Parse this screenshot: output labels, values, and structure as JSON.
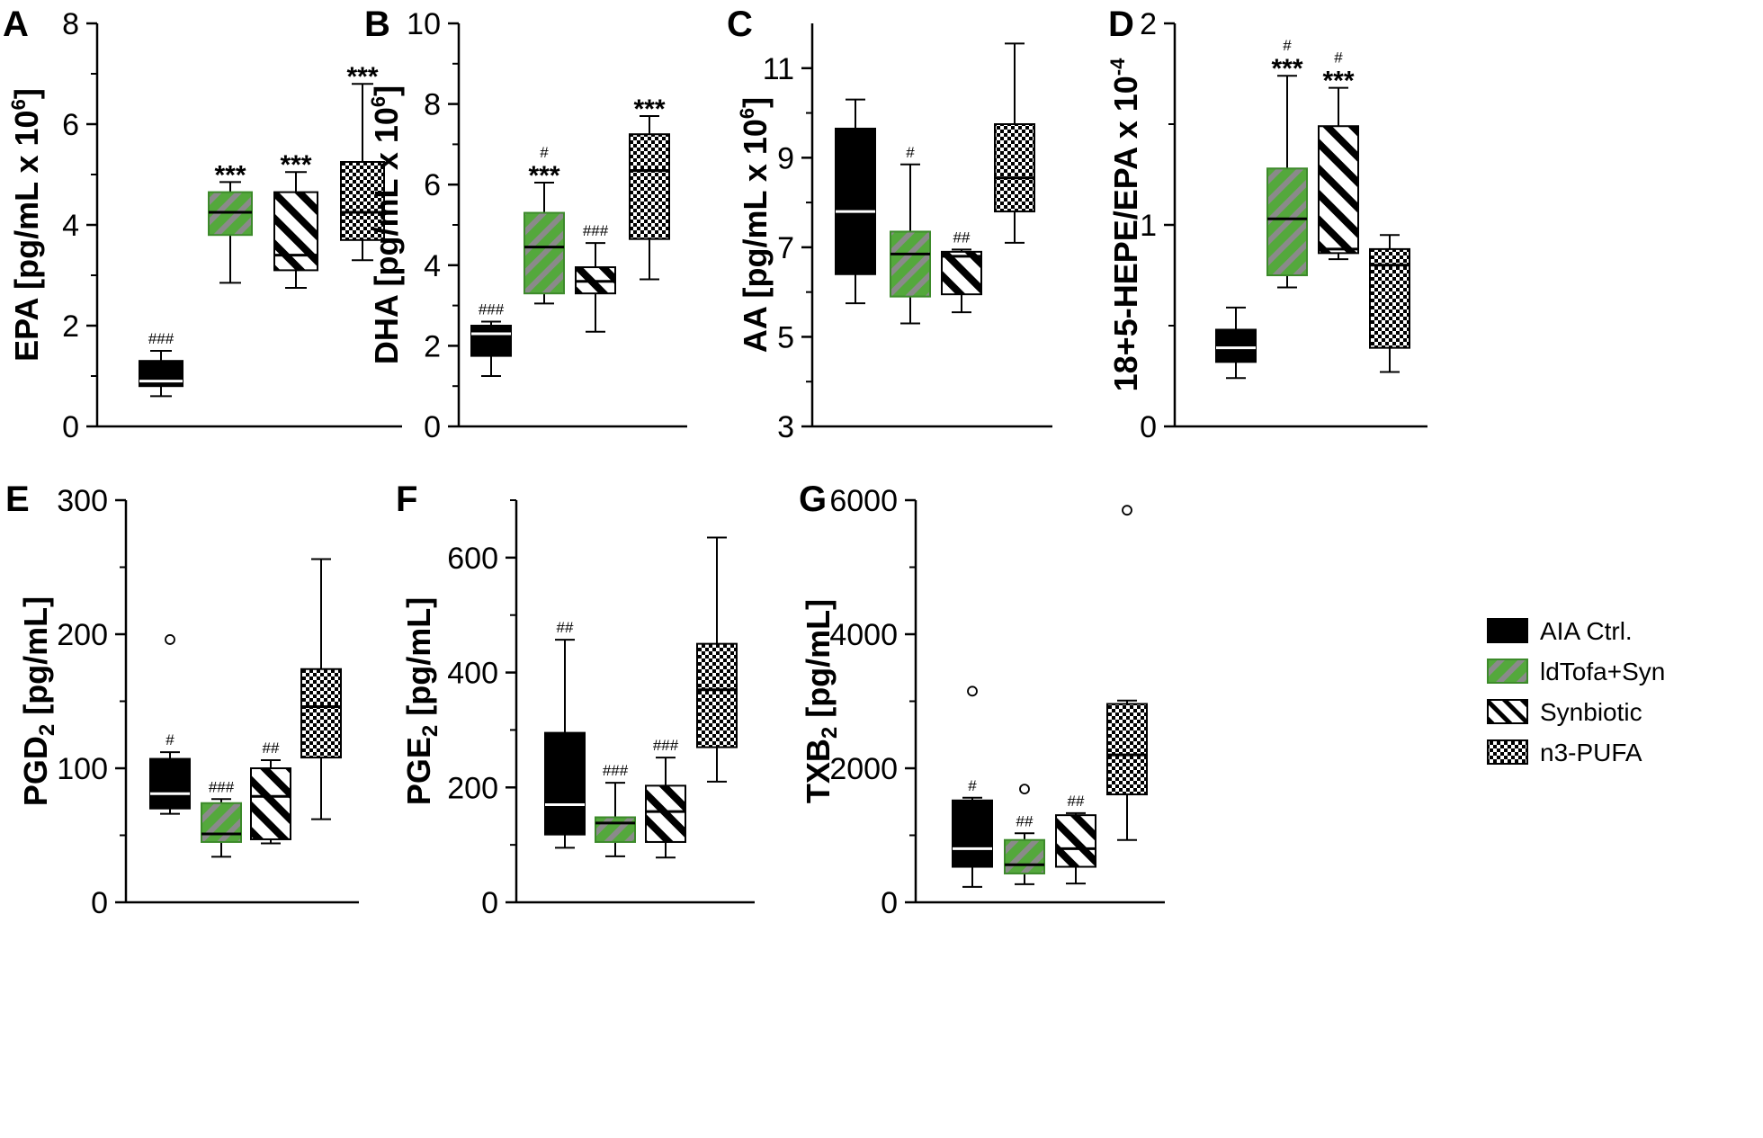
{
  "colors": {
    "ctrl": "#000000",
    "green": "#54a83c",
    "green_stripe": "#808080",
    "white": "#ffffff",
    "median_dark": "#000000",
    "median_light": "#ffffff"
  },
  "legend": [
    {
      "label": "AIA Ctrl.",
      "style": "black"
    },
    {
      "label": "ldTofa+Syn",
      "style": "green"
    },
    {
      "label": "Synbiotic",
      "style": "stripe"
    },
    {
      "label": "n3-PUFA",
      "style": "check"
    }
  ],
  "chart_data": [
    {
      "type": "box",
      "panel": "A",
      "ylabel": "EPA [pg/mL x 10",
      "ylabel_sup": "6",
      "ylabel_close": "]",
      "ylim": [
        0,
        8
      ],
      "yticks": [
        0,
        2,
        4,
        6,
        8
      ],
      "minor": [
        1,
        3,
        5,
        7
      ],
      "groups": [
        {
          "whisker_low": 0.6,
          "q1": 0.8,
          "median": 0.9,
          "q3": 1.3,
          "whisker_high": 1.5,
          "annot": [
            "###"
          ]
        },
        {
          "whisker_low": 2.85,
          "q1": 3.8,
          "median": 4.25,
          "q3": 4.65,
          "whisker_high": 4.85,
          "annot": [
            "***"
          ]
        },
        {
          "whisker_low": 2.75,
          "q1": 3.1,
          "median": 3.4,
          "q3": 4.65,
          "whisker_high": 5.05,
          "annot": [
            "***"
          ]
        },
        {
          "whisker_low": 3.3,
          "q1": 3.7,
          "median": 4.25,
          "q3": 5.25,
          "whisker_high": 6.8,
          "annot": [
            "***"
          ]
        }
      ]
    },
    {
      "type": "box",
      "panel": "B",
      "ylabel": "DHA [pg/mL x 10",
      "ylabel_sup": "6",
      "ylabel_close": "]",
      "ylim": [
        0,
        10
      ],
      "yticks": [
        0,
        2,
        4,
        6,
        8,
        10
      ],
      "minor": [
        1,
        3,
        5,
        7,
        9
      ],
      "groups": [
        {
          "whisker_low": 1.25,
          "q1": 1.75,
          "median": 2.3,
          "q3": 2.5,
          "whisker_high": 2.6,
          "annot": [
            "###"
          ]
        },
        {
          "whisker_low": 3.05,
          "q1": 3.3,
          "median": 4.45,
          "q3": 5.3,
          "whisker_high": 6.05,
          "annot": [
            "#",
            "***"
          ]
        },
        {
          "whisker_low": 2.35,
          "q1": 3.3,
          "median": 3.6,
          "q3": 3.95,
          "whisker_high": 4.55,
          "annot": [
            "###"
          ]
        },
        {
          "whisker_low": 3.65,
          "q1": 4.65,
          "median": 6.35,
          "q3": 7.25,
          "whisker_high": 7.7,
          "annot": [
            "***"
          ]
        }
      ]
    },
    {
      "type": "box",
      "panel": "C",
      "ylabel": "AA [pg/mL x 10",
      "ylabel_sup": "6",
      "ylabel_close": "]",
      "ylim": [
        3,
        12
      ],
      "yticks": [
        3,
        5,
        7,
        9,
        11
      ],
      "minor": [
        4,
        6,
        8,
        10
      ],
      "groups": [
        {
          "whisker_low": 5.75,
          "q1": 6.4,
          "median": 7.8,
          "q3": 9.65,
          "whisker_high": 10.3,
          "annot": []
        },
        {
          "whisker_low": 5.3,
          "q1": 5.9,
          "median": 6.85,
          "q3": 7.35,
          "whisker_high": 8.85,
          "annot": [
            "#"
          ]
        },
        {
          "whisker_low": 5.55,
          "q1": 5.95,
          "median": 6.8,
          "q3": 6.9,
          "whisker_high": 6.95,
          "annot": [
            "##"
          ]
        },
        {
          "whisker_low": 7.1,
          "q1": 7.8,
          "median": 8.55,
          "q3": 9.75,
          "whisker_high": 11.55,
          "annot": []
        }
      ]
    },
    {
      "type": "box",
      "panel": "D",
      "ylabel": "18+5-HEPE/EPA x 10",
      "ylabel_sup": "-4",
      "ylabel_close": "",
      "ylim": [
        0,
        2
      ],
      "yticks": [
        0,
        1,
        2
      ],
      "yticklabels": [
        "0",
        "1",
        "2"
      ],
      "minor": [
        0.5,
        1.5
      ],
      "groups": [
        {
          "whisker_low": 0.24,
          "q1": 0.32,
          "median": 0.39,
          "q3": 0.48,
          "whisker_high": 0.59,
          "annot": []
        },
        {
          "whisker_low": 0.69,
          "q1": 0.75,
          "median": 1.03,
          "q3": 1.28,
          "whisker_high": 1.74,
          "annot": [
            "#",
            "***"
          ]
        },
        {
          "whisker_low": 0.83,
          "q1": 0.86,
          "median": 0.88,
          "q3": 1.49,
          "whisker_high": 1.68,
          "annot": [
            "#",
            "***"
          ]
        },
        {
          "whisker_low": 0.27,
          "q1": 0.39,
          "median": 0.8,
          "q3": 0.88,
          "whisker_high": 0.95,
          "annot": []
        }
      ]
    },
    {
      "type": "box",
      "panel": "E",
      "ylabel": "PGD",
      "ylabel_sub": "2",
      "ylabel_close": " [pg/mL]",
      "ylim": [
        0,
        300
      ],
      "yticks": [
        0,
        100,
        200,
        300
      ],
      "minor": [
        50,
        150,
        250
      ],
      "groups": [
        {
          "whisker_low": 66,
          "q1": 70,
          "median": 81,
          "q3": 107,
          "whisker_high": 112,
          "outliers": [
            196
          ],
          "annot": [
            "#"
          ]
        },
        {
          "whisker_low": 34,
          "q1": 45,
          "median": 51,
          "q3": 74,
          "whisker_high": 77,
          "annot": [
            "###"
          ]
        },
        {
          "whisker_low": 44,
          "q1": 47,
          "median": 79,
          "q3": 100,
          "whisker_high": 106,
          "annot": [
            "##"
          ]
        },
        {
          "whisker_low": 62,
          "q1": 108,
          "median": 146,
          "q3": 174,
          "whisker_high": 256,
          "annot": []
        }
      ]
    },
    {
      "type": "box",
      "panel": "F",
      "ylabel": "PGE",
      "ylabel_sub": "2",
      "ylabel_close": " [pg/mL]",
      "ylim": [
        0,
        700
      ],
      "yticks": [
        0,
        200,
        400,
        600
      ],
      "minor": [
        100,
        300,
        500,
        700
      ],
      "groups": [
        {
          "whisker_low": 95,
          "q1": 118,
          "median": 170,
          "q3": 295,
          "whisker_high": 457,
          "annot": [
            "##"
          ]
        },
        {
          "whisker_low": 80,
          "q1": 105,
          "median": 138,
          "q3": 148,
          "whisker_high": 208,
          "annot": [
            "###"
          ]
        },
        {
          "whisker_low": 78,
          "q1": 105,
          "median": 158,
          "q3": 203,
          "whisker_high": 252,
          "annot": [
            "###"
          ]
        },
        {
          "whisker_low": 210,
          "q1": 270,
          "median": 370,
          "q3": 450,
          "whisker_high": 635,
          "annot": []
        }
      ]
    },
    {
      "type": "box",
      "panel": "G",
      "ylabel": "TXB",
      "ylabel_sub": "2",
      "ylabel_close": " [pg/mL]",
      "ylim": [
        0,
        6000
      ],
      "yticks": [
        0,
        2000,
        4000,
        6000
      ],
      "minor": [
        1000,
        3000,
        5000
      ],
      "groups": [
        {
          "whisker_low": 230,
          "q1": 530,
          "median": 800,
          "q3": 1520,
          "whisker_high": 1560,
          "outliers": [
            3150
          ],
          "annot": [
            "#"
          ]
        },
        {
          "whisker_low": 270,
          "q1": 430,
          "median": 560,
          "q3": 930,
          "whisker_high": 1030,
          "outliers": [
            1690
          ],
          "annot": [
            "##"
          ]
        },
        {
          "whisker_low": 280,
          "q1": 530,
          "median": 800,
          "q3": 1300,
          "whisker_high": 1330,
          "annot": [
            "##"
          ]
        },
        {
          "whisker_low": 930,
          "q1": 1610,
          "median": 2200,
          "q3": 2960,
          "whisker_high": 3010,
          "outliers": [
            5850
          ],
          "annot": []
        }
      ]
    }
  ]
}
